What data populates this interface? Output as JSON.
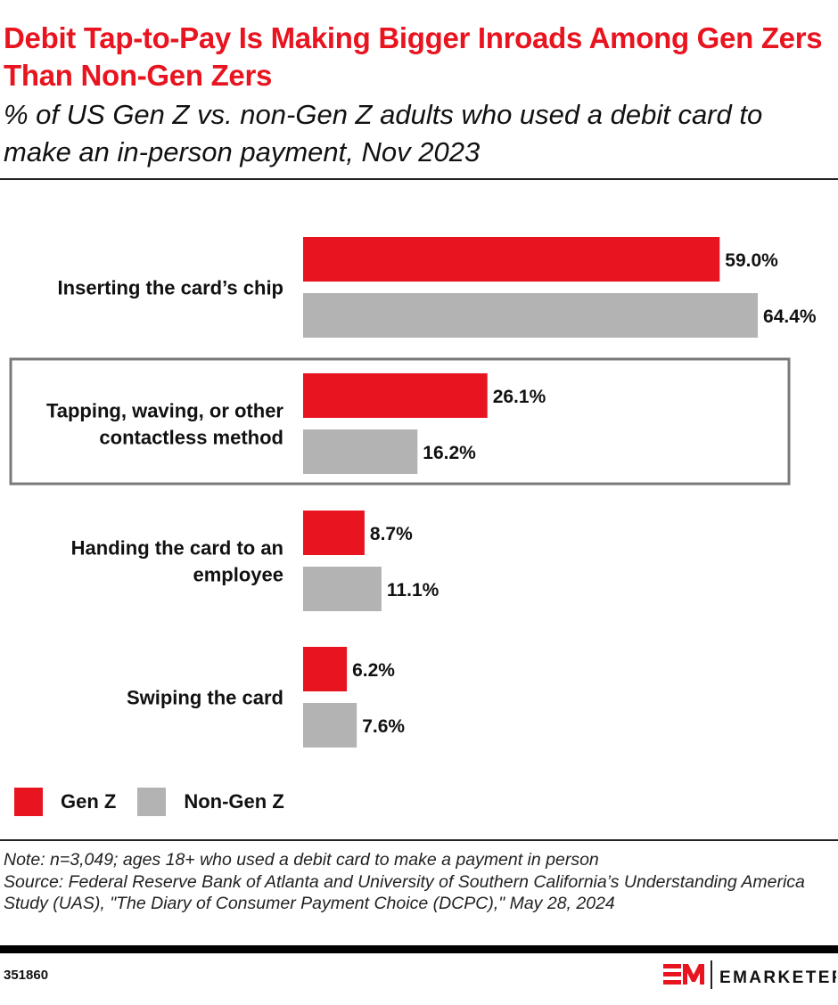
{
  "title": "Debit Tap-to-Pay Is Making Bigger Inroads Among Gen Zers Than Non-Gen Zers",
  "subtitle": "% of US Gen Z vs. non-Gen Z adults who used a debit card to make an in-person payment, Nov 2023",
  "chart_data": {
    "type": "bar",
    "orientation": "horizontal",
    "categories": [
      "Inserting the card’s chip",
      "Tapping, waving, or other contactless method",
      "Handing the card to an employee",
      "Swiping the card"
    ],
    "category_lines": [
      [
        "Inserting the card’s chip"
      ],
      [
        "Tapping, waving, or other",
        "contactless method"
      ],
      [
        "Handing the card to an",
        "employee"
      ],
      [
        "Swiping the card"
      ]
    ],
    "series": [
      {
        "name": "Gen Z",
        "color": "#e8141f",
        "values": [
          59.0,
          26.1,
          8.7,
          6.2
        ]
      },
      {
        "name": "Non-Gen Z",
        "color": "#b3b3b3",
        "values": [
          64.4,
          16.2,
          11.1,
          7.6
        ]
      }
    ],
    "value_suffix": "%",
    "highlighted_category": "Tapping, waving, or other contactless method",
    "legend_position": "bottom-left",
    "grid": false
  },
  "legend": [
    {
      "label": "Gen Z",
      "color": "#e8141f"
    },
    {
      "label": "Non-Gen Z",
      "color": "#b3b3b3"
    }
  ],
  "note": "Note: n=3,049; ages 18+ who used a debit card to make a payment in person",
  "source": "Source: Federal Reserve Bank of Atlanta and University of Southern California’s Understanding America Study (UAS), \"The Diary of Consumer Payment Choice (DCPC),\" May 28, 2024",
  "chart_id": "351860",
  "brand": "EMARKETER"
}
